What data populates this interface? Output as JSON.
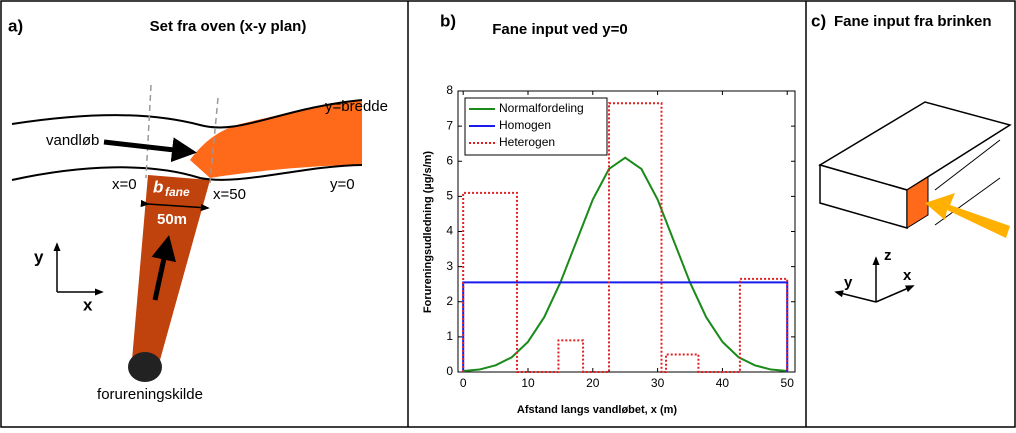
{
  "panel_a": {
    "label": "a)",
    "title": "Set fra oven (x-y plan)",
    "stream": "vandløb",
    "bank_far": "y=bredde",
    "bank_near": "y=0",
    "x_start": "x=0",
    "x_end": "x=50",
    "width_symbol": "b",
    "width_subscript": "fane",
    "width_value": "50m",
    "axis_y": "y",
    "axis_x": "x",
    "source": "forureningskilde"
  },
  "chart_data": {
    "type": "line",
    "panel_label": "b)",
    "title": "Fane input ved y=0",
    "xlabel": "Afstand langs vandløbet, x (m)",
    "ylabel": "Forureningsudledning (µg/s/m)",
    "xlim": [
      -0.8,
      51.2
    ],
    "ylim": [
      0,
      8
    ],
    "xticks": [
      0,
      10,
      20,
      30,
      40,
      50
    ],
    "yticks": [
      0,
      1,
      2,
      3,
      4,
      5,
      6,
      7,
      8
    ],
    "legend": "upper left",
    "series": [
      {
        "name": "Normalfordeling",
        "color": "#1a8a1a",
        "dash": "solid",
        "x": [
          0,
          2.5,
          5,
          7.5,
          10,
          12.5,
          15,
          17.5,
          20,
          22.5,
          25,
          27.5,
          30,
          32.5,
          35,
          37.5,
          40,
          42.5,
          45,
          47.5,
          50
        ],
        "values": [
          0.03,
          0.07,
          0.19,
          0.42,
          0.86,
          1.56,
          2.55,
          3.73,
          4.91,
          5.78,
          6.1,
          5.78,
          4.91,
          3.73,
          2.55,
          1.56,
          0.86,
          0.42,
          0.19,
          0.07,
          0.03
        ]
      },
      {
        "name": "Homogen",
        "color": "#1a1aee",
        "dash": "solid",
        "x": [
          0,
          0,
          50,
          50
        ],
        "values": [
          0,
          2.55,
          2.55,
          0
        ]
      },
      {
        "name": "Heterogen",
        "color": "#e02020",
        "dash": "dotted",
        "x": [
          0,
          0,
          8.3,
          8.3,
          14.7,
          14.7,
          18.5,
          18.5,
          22.5,
          22.5,
          30.6,
          30.6,
          31.3,
          31.3,
          36.3,
          36.3,
          42.7,
          42.7,
          50,
          50
        ],
        "values": [
          0,
          5.1,
          5.1,
          0,
          0,
          0.9,
          0.9,
          0,
          0,
          7.65,
          7.65,
          0,
          0,
          0.5,
          0.5,
          0,
          0,
          2.65,
          2.65,
          0
        ]
      }
    ]
  },
  "panel_c": {
    "label": "c)",
    "title": "Fane input fra brinken",
    "axis_z": "z",
    "axis_y": "y",
    "axis_x": "x"
  }
}
